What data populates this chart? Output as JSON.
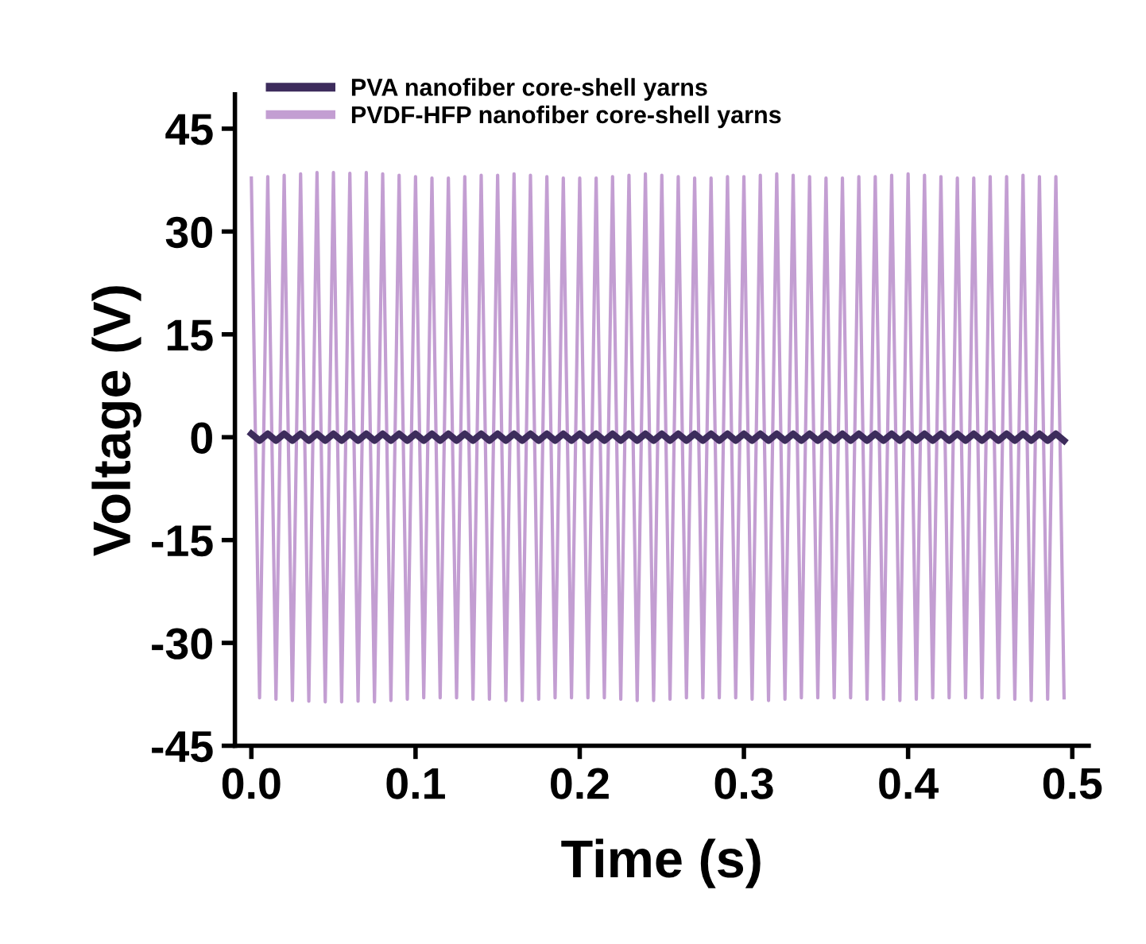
{
  "chart_data": {
    "type": "line",
    "xlabel": "Time (s)",
    "ylabel": "Voltage (V)",
    "x": [
      0.0,
      0.005,
      0.01,
      0.015,
      0.02,
      0.025,
      0.03,
      0.035,
      0.04,
      0.045,
      0.05,
      0.055,
      0.06,
      0.065,
      0.07,
      0.075,
      0.08,
      0.085,
      0.09,
      0.095,
      0.1,
      0.105,
      0.11,
      0.115,
      0.12,
      0.125,
      0.13,
      0.135,
      0.14,
      0.145,
      0.15,
      0.155,
      0.16,
      0.165,
      0.17,
      0.175,
      0.18,
      0.185,
      0.19,
      0.195,
      0.2,
      0.205,
      0.21,
      0.215,
      0.22,
      0.225,
      0.23,
      0.235,
      0.24,
      0.245,
      0.25,
      0.255,
      0.26,
      0.265,
      0.27,
      0.275,
      0.28,
      0.285,
      0.29,
      0.295,
      0.3,
      0.305,
      0.31,
      0.315,
      0.32,
      0.325,
      0.33,
      0.335,
      0.34,
      0.345,
      0.35,
      0.355,
      0.36,
      0.365,
      0.37,
      0.375,
      0.38,
      0.385,
      0.39,
      0.395,
      0.4,
      0.405,
      0.41,
      0.415,
      0.42,
      0.425,
      0.43,
      0.435,
      0.44,
      0.445,
      0.45,
      0.455,
      0.46,
      0.465,
      0.47,
      0.475,
      0.48,
      0.485,
      0.49,
      0.495
    ],
    "series": [
      {
        "name": "PVA nanofiber core-shell yarns",
        "color": "#3d2c5c",
        "values": [
          0.5,
          -0.5,
          0.5,
          -0.5,
          0.5,
          -0.5,
          0.5,
          -0.5,
          0.5,
          -0.5,
          0.5,
          -0.5,
          0.5,
          -0.5,
          0.5,
          -0.5,
          0.5,
          -0.5,
          0.5,
          -0.5,
          0.5,
          -0.5,
          0.5,
          -0.5,
          0.5,
          -0.5,
          0.5,
          -0.5,
          0.5,
          -0.5,
          0.5,
          -0.5,
          0.5,
          -0.5,
          0.5,
          -0.5,
          0.5,
          -0.5,
          0.5,
          -0.5,
          0.5,
          -0.5,
          0.5,
          -0.5,
          0.5,
          -0.5,
          0.5,
          -0.5,
          0.5,
          -0.5,
          0.5,
          -0.5,
          0.5,
          -0.5,
          0.5,
          -0.5,
          0.5,
          -0.5,
          0.5,
          -0.5,
          0.5,
          -0.5,
          0.5,
          -0.5,
          0.5,
          -0.5,
          0.5,
          -0.5,
          0.5,
          -0.5,
          0.5,
          -0.5,
          0.5,
          -0.5,
          0.5,
          -0.5,
          0.5,
          -0.5,
          0.5,
          -0.5,
          0.5,
          -0.5,
          0.5,
          -0.5,
          0.5,
          -0.5,
          0.5,
          -0.5,
          0.5,
          -0.5,
          0.5,
          -0.5,
          0.5,
          -0.5,
          0.5,
          -0.5,
          0.5,
          -0.5,
          0.5,
          -0.5
        ]
      },
      {
        "name": "PVDF-HFP nanofiber core-shell yarns",
        "color": "#c39ed2",
        "values": [
          37.8,
          -38.0,
          38.0,
          -38.2,
          38.2,
          -38.4,
          38.4,
          -38.5,
          38.6,
          -38.6,
          38.6,
          -38.6,
          38.5,
          -38.5,
          38.6,
          -38.6,
          38.4,
          -38.4,
          38.2,
          -38.2,
          38.0,
          -38.0,
          37.8,
          -38.0,
          37.8,
          -38.0,
          38.0,
          -38.2,
          38.2,
          -38.2,
          38.2,
          -38.4,
          38.4,
          -38.4,
          38.2,
          -38.2,
          38.0,
          -38.0,
          37.8,
          -38.0,
          37.8,
          -38.0,
          37.8,
          -38.0,
          38.0,
          -38.2,
          38.2,
          -38.4,
          38.4,
          -38.4,
          38.2,
          -38.2,
          38.0,
          -38.0,
          37.8,
          -38.0,
          37.8,
          -38.0,
          38.0,
          -38.0,
          38.0,
          -38.2,
          38.2,
          -38.4,
          38.4,
          -38.2,
          38.2,
          -38.0,
          38.0,
          -38.0,
          37.8,
          -38.0,
          37.8,
          -38.0,
          38.0,
          -38.2,
          38.0,
          -38.2,
          38.2,
          -38.4,
          38.4,
          -38.2,
          38.2,
          -38.0,
          38.0,
          -38.0,
          37.8,
          -38.0,
          37.8,
          -38.0,
          38.0,
          -38.0,
          38.0,
          -38.2,
          38.2,
          -38.4,
          38.0,
          -38.2,
          38.0,
          -38.0
        ]
      }
    ],
    "xlim": [
      -0.01,
      0.51
    ],
    "ylim": [
      -45,
      50
    ],
    "xticks": [
      {
        "value": 0.0,
        "label": "0.0"
      },
      0.1,
      0.2,
      0.3,
      0.4,
      0.5
    ],
    "yticks": [
      -45,
      -30,
      -15,
      0,
      15,
      30,
      45
    ],
    "legend": "top left",
    "grid": false,
    "marker": "none",
    "line_style": "solid"
  }
}
